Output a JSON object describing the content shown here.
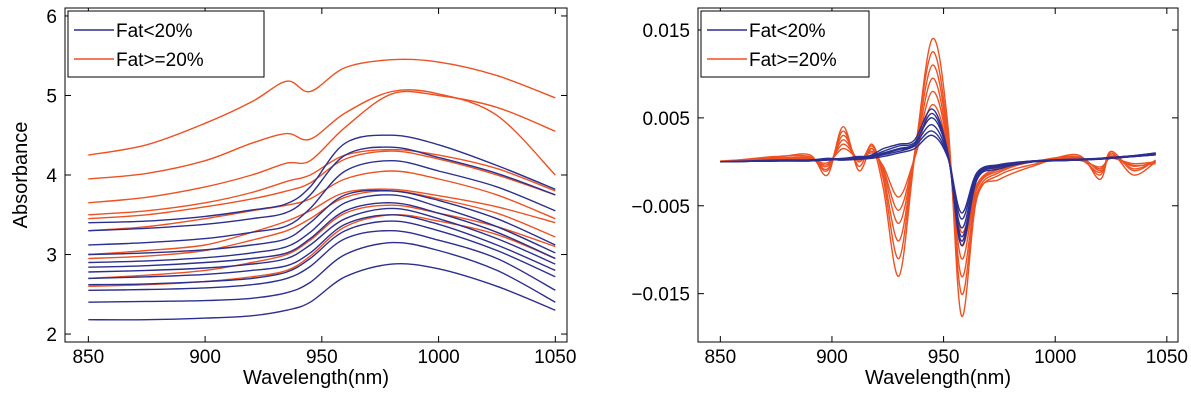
{
  "chart_data": [
    {
      "type": "line",
      "xlabel": "Wavelength(nm)",
      "ylabel": "Absorbance",
      "xlim": [
        840,
        1055
      ],
      "ylim": [
        1.9,
        6.1
      ],
      "xticks": [
        850,
        900,
        950,
        1000,
        1050
      ],
      "yticks": [
        2,
        3,
        4,
        5,
        6
      ],
      "legend": {
        "placement": "top-left",
        "entries": [
          "Fat<20%",
          "Fat>=20%"
        ]
      },
      "grid": false,
      "colors": {
        "Fat<20%": "#2b2f8f",
        "Fat>=20%": "#ee5122"
      },
      "wavelengths": [
        850,
        875,
        900,
        920,
        935,
        945,
        960,
        980,
        1000,
        1025,
        1050
      ],
      "series": [
        {
          "name": "Fat<20%",
          "values": [
            2.18,
            2.18,
            2.2,
            2.23,
            2.3,
            2.4,
            2.72,
            2.88,
            2.82,
            2.6,
            2.3
          ]
        },
        {
          "name": "Fat<20%",
          "values": [
            2.4,
            2.41,
            2.42,
            2.45,
            2.52,
            2.65,
            3.0,
            3.15,
            3.05,
            2.8,
            2.4
          ]
        },
        {
          "name": "Fat<20%",
          "values": [
            2.55,
            2.56,
            2.58,
            2.62,
            2.7,
            2.85,
            3.2,
            3.3,
            3.18,
            2.95,
            2.55
          ]
        },
        {
          "name": "Fat<20%",
          "values": [
            2.62,
            2.63,
            2.66,
            2.7,
            2.78,
            2.95,
            3.3,
            3.42,
            3.3,
            3.05,
            2.72
          ]
        },
        {
          "name": "Fat<20%",
          "values": [
            2.7,
            2.72,
            2.75,
            2.8,
            2.86,
            3.02,
            3.38,
            3.5,
            3.38,
            3.12,
            2.8
          ]
        },
        {
          "name": "Fat<20%",
          "values": [
            2.78,
            2.8,
            2.83,
            2.88,
            2.95,
            3.12,
            3.45,
            3.58,
            3.45,
            3.2,
            2.88
          ]
        },
        {
          "name": "Fat<20%",
          "values": [
            2.84,
            2.86,
            2.9,
            2.95,
            3.02,
            3.2,
            3.55,
            3.65,
            3.52,
            3.28,
            2.95
          ]
        },
        {
          "name": "Fat<20%",
          "values": [
            2.9,
            2.92,
            2.96,
            3.02,
            3.1,
            3.28,
            3.65,
            3.75,
            3.6,
            3.35,
            3.02
          ]
        },
        {
          "name": "Fat<20%",
          "values": [
            3.0,
            3.02,
            3.06,
            3.12,
            3.2,
            3.4,
            3.75,
            3.8,
            3.68,
            3.45,
            3.12
          ]
        },
        {
          "name": "Fat<20%",
          "values": [
            3.12,
            3.15,
            3.2,
            3.28,
            3.36,
            3.58,
            4.05,
            4.18,
            4.05,
            3.85,
            3.55
          ]
        },
        {
          "name": "Fat<20%",
          "values": [
            3.3,
            3.33,
            3.38,
            3.45,
            3.53,
            3.75,
            4.25,
            4.35,
            4.22,
            4.02,
            3.75
          ]
        },
        {
          "name": "Fat<20%",
          "values": [
            3.4,
            3.42,
            3.48,
            3.56,
            3.64,
            3.85,
            4.4,
            4.5,
            4.38,
            4.12,
            3.82
          ]
        },
        {
          "name": "Fat>=20%",
          "values": [
            2.6,
            2.62,
            2.66,
            2.72,
            2.8,
            2.98,
            3.35,
            3.5,
            3.42,
            3.25,
            2.95
          ]
        },
        {
          "name": "Fat>=20%",
          "values": [
            2.7,
            2.74,
            2.8,
            2.9,
            3.0,
            3.18,
            3.52,
            3.62,
            3.52,
            3.35,
            3.1
          ]
        },
        {
          "name": "Fat>=20%",
          "values": [
            2.95,
            2.98,
            3.05,
            3.18,
            3.3,
            3.45,
            3.72,
            3.8,
            3.7,
            3.52,
            3.22
          ]
        },
        {
          "name": "Fat>=20%",
          "values": [
            3.0,
            3.05,
            3.12,
            3.28,
            3.42,
            3.55,
            3.78,
            3.82,
            3.74,
            3.6,
            3.4
          ]
        },
        {
          "name": "Fat>=20%",
          "values": [
            3.3,
            3.35,
            3.45,
            3.55,
            3.62,
            3.7,
            3.95,
            4.05,
            3.95,
            3.75,
            3.45
          ]
        },
        {
          "name": "Fat>=20%",
          "values": [
            3.45,
            3.5,
            3.6,
            3.7,
            3.8,
            3.9,
            4.2,
            4.3,
            4.2,
            4.0,
            3.75
          ]
        },
        {
          "name": "Fat>=20%",
          "values": [
            3.5,
            3.55,
            3.65,
            3.78,
            3.92,
            4.0,
            4.25,
            4.32,
            4.25,
            4.08,
            3.8
          ]
        },
        {
          "name": "Fat>=20%",
          "values": [
            3.65,
            3.72,
            3.85,
            4.0,
            4.15,
            4.18,
            4.6,
            5.02,
            5.0,
            4.85,
            4.55
          ]
        },
        {
          "name": "Fat>=20%",
          "values": [
            3.95,
            4.02,
            4.18,
            4.4,
            4.52,
            4.45,
            4.78,
            5.05,
            5.02,
            4.75,
            4.0
          ]
        },
        {
          "name": "Fat>=20%",
          "values": [
            4.25,
            4.38,
            4.65,
            4.92,
            5.18,
            5.05,
            5.35,
            5.45,
            5.42,
            5.25,
            4.97
          ]
        }
      ]
    },
    {
      "type": "line",
      "xlabel": "Wavelength(nm)",
      "ylabel": "",
      "xlim": [
        840,
        1055
      ],
      "ylim": [
        -0.0205,
        0.0175
      ],
      "xticks": [
        850,
        900,
        950,
        1000,
        1050
      ],
      "yticks": [
        -0.015,
        -0.005,
        0.005,
        0.015
      ],
      "ytick_labels": [
        "−0.015",
        "−0.005",
        "0.005",
        "0.015"
      ],
      "legend": {
        "placement": "top-left",
        "entries": [
          "Fat<20%",
          "Fat>=20%"
        ]
      },
      "grid": false,
      "colors": {
        "Fat<20%": "#2b2f8f",
        "Fat>=20%": "#ee5122"
      },
      "wavelengths": [
        850,
        875,
        890,
        898,
        905,
        912,
        918,
        923,
        930,
        937,
        945,
        952,
        958,
        965,
        975,
        990,
        1010,
        1020,
        1025,
        1035,
        1045
      ],
      "series": [
        {
          "name": "Fat>=20%",
          "values": [
            0.0,
            0.0005,
            0.0008,
            -0.0015,
            0.004,
            -0.001,
            0.0015,
            -0.003,
            -0.013,
            0.0005,
            0.014,
            0.004,
            -0.0175,
            -0.004,
            -0.002,
            -0.0005,
            0.0008,
            -0.002,
            0.001,
            -0.0015,
            0.0
          ]
        },
        {
          "name": "Fat>=20%",
          "values": [
            0.0,
            0.0006,
            0.0006,
            -0.001,
            0.0035,
            -0.0005,
            0.002,
            -0.002,
            -0.011,
            0.001,
            0.0125,
            0.003,
            -0.015,
            -0.004,
            -0.0015,
            -0.0003,
            0.0005,
            -0.0015,
            0.0012,
            -0.001,
            0.0002
          ]
        },
        {
          "name": "Fat>=20%",
          "values": [
            0.0001,
            0.0004,
            0.0005,
            -0.0008,
            0.003,
            0.0,
            0.0018,
            -0.0015,
            -0.009,
            0.0008,
            0.011,
            0.0025,
            -0.013,
            -0.0035,
            -0.0012,
            0.0,
            0.0003,
            -0.0012,
            0.0008,
            -0.0008,
            0.0001
          ]
        },
        {
          "name": "Fat>=20%",
          "values": [
            0.0,
            0.0003,
            0.0004,
            -0.0005,
            0.0025,
            0.0002,
            0.0015,
            -0.001,
            -0.007,
            0.0006,
            0.0095,
            0.002,
            -0.011,
            -0.003,
            -0.001,
            0.0,
            0.0006,
            -0.001,
            0.0005,
            -0.0005,
            0.0
          ]
        },
        {
          "name": "Fat>=20%",
          "values": [
            0.0,
            0.0002,
            0.0003,
            -0.0003,
            0.002,
            0.0003,
            0.0012,
            -0.0008,
            -0.0055,
            0.0005,
            0.008,
            0.0018,
            -0.0095,
            -0.0028,
            -0.0008,
            0.0,
            0.0004,
            -0.0008,
            0.0006,
            -0.0004,
            -0.0002
          ]
        },
        {
          "name": "Fat>=20%",
          "values": [
            0.0,
            0.0001,
            0.0002,
            -0.0001,
            0.0015,
            0.0004,
            0.001,
            -0.0005,
            -0.004,
            0.0004,
            0.0065,
            0.0015,
            -0.008,
            -0.0025,
            -0.0006,
            0.0001,
            0.0002,
            -0.0006,
            0.0004,
            -0.0002,
            0.0
          ]
        },
        {
          "name": "Fat<20%",
          "values": [
            0.0,
            0.0001,
            0.0001,
            0.0003,
            0.0002,
            0.0004,
            0.0008,
            0.0015,
            0.002,
            0.0025,
            0.006,
            0.001,
            -0.0095,
            -0.002,
            -0.0008,
            0.0,
            0.0002,
            0.0003,
            0.0005,
            0.0006,
            0.0008
          ]
        },
        {
          "name": "Fat<20%",
          "values": [
            0.0,
            0.0001,
            0.0002,
            0.0004,
            0.0003,
            0.0005,
            0.0007,
            0.0012,
            0.0018,
            0.0022,
            0.005,
            0.0008,
            -0.0085,
            -0.0018,
            -0.0006,
            0.0,
            0.0002,
            0.0004,
            0.0004,
            0.0006,
            0.0009
          ]
        },
        {
          "name": "Fat<20%",
          "values": [
            0.0,
            0.0002,
            0.0002,
            0.0003,
            0.0004,
            0.0006,
            0.0006,
            0.001,
            0.0015,
            0.002,
            0.0042,
            0.0006,
            -0.0075,
            -0.0016,
            -0.0005,
            0.0001,
            0.0003,
            0.0004,
            0.0005,
            0.0007,
            0.001
          ]
        },
        {
          "name": "Fat<20%",
          "values": [
            0.0,
            0.0001,
            0.0001,
            0.0002,
            0.0003,
            0.0004,
            0.0005,
            0.0008,
            0.0012,
            0.0018,
            0.0035,
            0.0005,
            -0.0065,
            -0.0014,
            -0.0004,
            0.0,
            0.0002,
            0.0003,
            0.0004,
            0.0006,
            0.0008
          ]
        },
        {
          "name": "Fat<20%",
          "values": [
            0.0,
            0.0001,
            0.0002,
            0.0003,
            0.0002,
            0.0003,
            0.0004,
            0.0006,
            0.001,
            0.0015,
            0.003,
            0.0004,
            -0.0058,
            -0.0012,
            -0.0003,
            0.0001,
            0.0003,
            0.0003,
            0.0005,
            0.0006,
            0.0009
          ]
        },
        {
          "name": "Fat<20%",
          "values": [
            0.0,
            0.0001,
            0.0001,
            0.0002,
            0.0003,
            0.0004,
            0.0006,
            0.0009,
            0.0014,
            0.002,
            0.0055,
            0.0008,
            -0.009,
            -0.0017,
            -0.0006,
            0.0,
            0.0002,
            0.0004,
            0.0005,
            0.0007,
            0.001
          ]
        }
      ]
    }
  ]
}
